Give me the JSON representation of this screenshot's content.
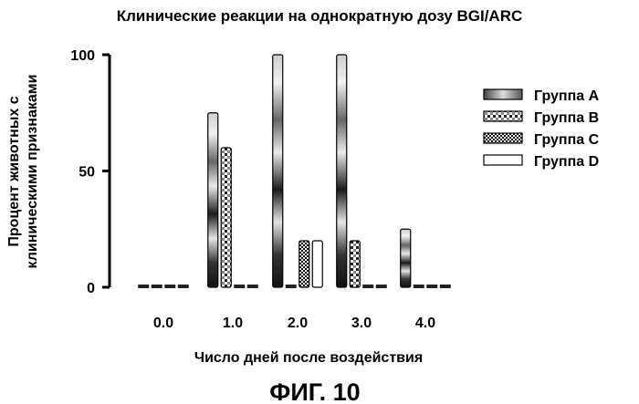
{
  "chart_data": {
    "type": "bar",
    "title": "Клинические реакции на однократную дозу BGI/ARC",
    "xlabel": "Число дней после воздействия",
    "ylabel_lines": [
      "Процент животных с",
      "клиническими признаками"
    ],
    "categories": [
      "0.0",
      "1.0",
      "2.0",
      "3.0",
      "4.0"
    ],
    "yticks": [
      "0",
      "50",
      "100"
    ],
    "ylim": [
      0,
      100
    ],
    "series": [
      {
        "name": "Группа A",
        "pattern": "gradient-dark",
        "values": [
          0,
          75,
          100,
          100,
          25
        ]
      },
      {
        "name": "Группа B",
        "pattern": "checker-light",
        "values": [
          0,
          60,
          0,
          20,
          0
        ]
      },
      {
        "name": "Группа C",
        "pattern": "checker-dark",
        "values": [
          0,
          0,
          20,
          0,
          0
        ]
      },
      {
        "name": "Группа D",
        "pattern": "empty",
        "values": [
          0,
          0,
          20,
          0,
          0
        ]
      }
    ],
    "legend_position": "right",
    "grid": false
  },
  "figure_caption": "ФИГ. 10"
}
